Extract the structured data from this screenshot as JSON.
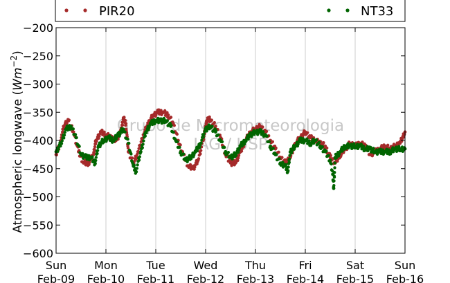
{
  "chart_data": {
    "type": "scatter",
    "ylabel_prefix": "Atmospheric longwave (",
    "ylabel_unit": "Wm",
    "ylabel_exp": "−2",
    "ylabel_suffix": ")",
    "ylim": [
      -600,
      -200
    ],
    "yticks": [
      -200,
      -250,
      -300,
      -350,
      -400,
      -450,
      -500,
      -550,
      -600
    ],
    "ytick_labels": [
      "−200",
      "−250",
      "−300",
      "−350",
      "−400",
      "−450",
      "−500",
      "−550",
      "−600"
    ],
    "xlim_days": [
      0,
      7
    ],
    "xticks": [
      {
        "day": "Sun",
        "date": "Feb-09"
      },
      {
        "day": "Mon",
        "date": "Feb-10"
      },
      {
        "day": "Tue",
        "date": "Feb-11"
      },
      {
        "day": "Wed",
        "date": "Feb-12"
      },
      {
        "day": "Thu",
        "date": "Feb-13"
      },
      {
        "day": "Fri",
        "date": "Feb-14"
      },
      {
        "day": "Sat",
        "date": "Feb-15"
      },
      {
        "day": "Sun",
        "date": "Feb-16"
      }
    ],
    "grid": "vertical",
    "legend_position": "top",
    "watermark": [
      "Grupo de Micrometeorologia",
      "IAG / USP"
    ],
    "series": [
      {
        "name": "PIR20",
        "color": "#a52a2a",
        "points": [
          [
            0.0,
            -425
          ],
          [
            0.1,
            -400
          ],
          [
            0.15,
            -375
          ],
          [
            0.25,
            -365
          ],
          [
            0.35,
            -385
          ],
          [
            0.45,
            -420
          ],
          [
            0.55,
            -440
          ],
          [
            0.65,
            -440
          ],
          [
            0.75,
            -425
          ],
          [
            0.8,
            -400
          ],
          [
            0.9,
            -385
          ],
          [
            1.0,
            -390
          ],
          [
            1.1,
            -395
          ],
          [
            1.2,
            -400
          ],
          [
            1.3,
            -385
          ],
          [
            1.35,
            -360
          ],
          [
            1.4,
            -370
          ],
          [
            1.45,
            -420
          ],
          [
            1.55,
            -440
          ],
          [
            1.65,
            -420
          ],
          [
            1.75,
            -390
          ],
          [
            1.85,
            -370
          ],
          [
            1.95,
            -355
          ],
          [
            2.05,
            -350
          ],
          [
            2.15,
            -350
          ],
          [
            2.25,
            -355
          ],
          [
            2.35,
            -370
          ],
          [
            2.45,
            -400
          ],
          [
            2.55,
            -425
          ],
          [
            2.65,
            -445
          ],
          [
            2.75,
            -450
          ],
          [
            2.85,
            -435
          ],
          [
            2.95,
            -400
          ],
          [
            3.0,
            -375
          ],
          [
            3.05,
            -360
          ],
          [
            3.1,
            -365
          ],
          [
            3.2,
            -375
          ],
          [
            3.3,
            -395
          ],
          [
            3.4,
            -425
          ],
          [
            3.5,
            -440
          ],
          [
            3.6,
            -440
          ],
          [
            3.7,
            -420
          ],
          [
            3.8,
            -400
          ],
          [
            3.9,
            -385
          ],
          [
            4.0,
            -380
          ],
          [
            4.1,
            -375
          ],
          [
            4.2,
            -385
          ],
          [
            4.3,
            -400
          ],
          [
            4.4,
            -415
          ],
          [
            4.5,
            -430
          ],
          [
            4.6,
            -440
          ],
          [
            4.7,
            -430
          ],
          [
            4.8,
            -405
          ],
          [
            4.9,
            -395
          ],
          [
            5.0,
            -385
          ],
          [
            5.1,
            -395
          ],
          [
            5.2,
            -400
          ],
          [
            5.3,
            -405
          ],
          [
            5.4,
            -410
          ],
          [
            5.5,
            -430
          ],
          [
            5.6,
            -440
          ],
          [
            5.7,
            -425
          ],
          [
            5.8,
            -415
          ],
          [
            5.9,
            -405
          ],
          [
            6.0,
            -410
          ],
          [
            6.1,
            -405
          ],
          [
            6.2,
            -410
          ],
          [
            6.3,
            -425
          ],
          [
            6.4,
            -420
          ],
          [
            6.5,
            -415
          ],
          [
            6.6,
            -410
          ],
          [
            6.7,
            -415
          ],
          [
            6.8,
            -410
          ],
          [
            6.9,
            -405
          ],
          [
            7.0,
            -385
          ]
        ]
      },
      {
        "name": "NT33",
        "color": "#006400",
        "points": [
          [
            0.0,
            -420
          ],
          [
            0.1,
            -405
          ],
          [
            0.2,
            -380
          ],
          [
            0.3,
            -375
          ],
          [
            0.4,
            -395
          ],
          [
            0.5,
            -425
          ],
          [
            0.6,
            -430
          ],
          [
            0.7,
            -430
          ],
          [
            0.78,
            -440
          ],
          [
            0.85,
            -410
          ],
          [
            0.95,
            -400
          ],
          [
            1.05,
            -395
          ],
          [
            1.15,
            -400
          ],
          [
            1.25,
            -390
          ],
          [
            1.35,
            -380
          ],
          [
            1.45,
            -405
          ],
          [
            1.55,
            -445
          ],
          [
            1.6,
            -455
          ],
          [
            1.7,
            -420
          ],
          [
            1.8,
            -385
          ],
          [
            1.9,
            -370
          ],
          [
            2.0,
            -365
          ],
          [
            2.1,
            -365
          ],
          [
            2.2,
            -365
          ],
          [
            2.3,
            -375
          ],
          [
            2.4,
            -400
          ],
          [
            2.5,
            -420
          ],
          [
            2.6,
            -435
          ],
          [
            2.7,
            -430
          ],
          [
            2.8,
            -420
          ],
          [
            2.9,
            -405
          ],
          [
            3.0,
            -380
          ],
          [
            3.1,
            -375
          ],
          [
            3.2,
            -385
          ],
          [
            3.3,
            -400
          ],
          [
            3.4,
            -420
          ],
          [
            3.5,
            -430
          ],
          [
            3.6,
            -425
          ],
          [
            3.7,
            -410
          ],
          [
            3.8,
            -400
          ],
          [
            3.9,
            -390
          ],
          [
            4.0,
            -385
          ],
          [
            4.1,
            -385
          ],
          [
            4.2,
            -390
          ],
          [
            4.3,
            -410
          ],
          [
            4.4,
            -425
          ],
          [
            4.5,
            -440
          ],
          [
            4.6,
            -445
          ],
          [
            4.65,
            -455
          ],
          [
            4.7,
            -420
          ],
          [
            4.8,
            -410
          ],
          [
            4.9,
            -400
          ],
          [
            5.0,
            -400
          ],
          [
            5.1,
            -405
          ],
          [
            5.2,
            -400
          ],
          [
            5.3,
            -410
          ],
          [
            5.4,
            -420
          ],
          [
            5.5,
            -435
          ],
          [
            5.55,
            -460
          ],
          [
            5.57,
            -485
          ],
          [
            5.6,
            -430
          ],
          [
            5.7,
            -420
          ],
          [
            5.8,
            -410
          ],
          [
            5.9,
            -410
          ],
          [
            6.0,
            -410
          ],
          [
            6.1,
            -410
          ],
          [
            6.2,
            -415
          ],
          [
            6.3,
            -415
          ],
          [
            6.4,
            -420
          ],
          [
            6.5,
            -420
          ],
          [
            6.6,
            -420
          ],
          [
            6.7,
            -420
          ],
          [
            6.8,
            -415
          ],
          [
            6.9,
            -415
          ],
          [
            7.0,
            -415
          ]
        ]
      }
    ]
  }
}
